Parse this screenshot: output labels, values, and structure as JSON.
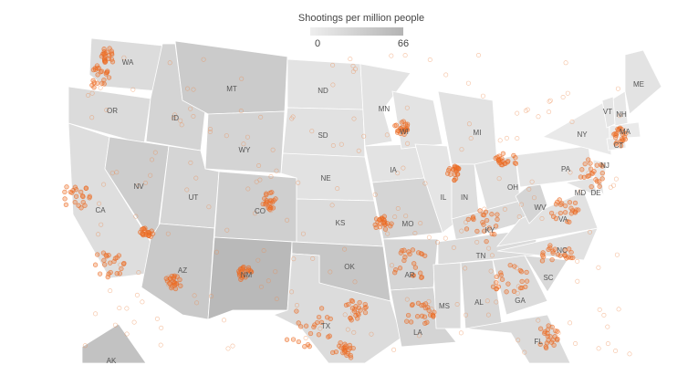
{
  "map": {
    "legend": {
      "title": "Shootings per million people",
      "min": 0,
      "max": 66
    },
    "states": [
      {
        "label": "WA",
        "value": 20
      },
      {
        "label": "OR",
        "value": 22
      },
      {
        "label": "CA",
        "value": 18
      },
      {
        "label": "NV",
        "value": 38
      },
      {
        "label": "ID",
        "value": 30
      },
      {
        "label": "MT",
        "value": 40
      },
      {
        "label": "WY",
        "value": 30
      },
      {
        "label": "UT",
        "value": 28
      },
      {
        "label": "AZ",
        "value": 42
      },
      {
        "label": "CO",
        "value": 35
      },
      {
        "label": "NM",
        "value": 60
      },
      {
        "label": "ND",
        "value": 12
      },
      {
        "label": "SD",
        "value": 15
      },
      {
        "label": "NE",
        "value": 14
      },
      {
        "label": "KS",
        "value": 20
      },
      {
        "label": "OK",
        "value": 45
      },
      {
        "label": "TX",
        "value": 20
      },
      {
        "label": "MN",
        "value": 12
      },
      {
        "label": "IA",
        "value": 12
      },
      {
        "label": "MO",
        "value": 28
      },
      {
        "label": "AR",
        "value": 28
      },
      {
        "label": "LA",
        "value": 30
      },
      {
        "label": "WI",
        "value": 12
      },
      {
        "label": "IL",
        "value": 10
      },
      {
        "label": "MI",
        "value": 14
      },
      {
        "label": "IN",
        "value": 18
      },
      {
        "label": "OH",
        "value": 16
      },
      {
        "label": "KY",
        "value": 22
      },
      {
        "label": "TN",
        "value": 22
      },
      {
        "label": "MS",
        "value": 22
      },
      {
        "label": "AL",
        "value": 26
      },
      {
        "label": "GA",
        "value": 20
      },
      {
        "label": "FL",
        "value": 22
      },
      {
        "label": "SC",
        "value": 24
      },
      {
        "label": "NC",
        "value": 15
      },
      {
        "label": "VA",
        "value": 14
      },
      {
        "label": "WV",
        "value": 28
      },
      {
        "label": "PA",
        "value": 10
      },
      {
        "label": "NY",
        "value": 6
      },
      {
        "label": "MD",
        "value": 12
      },
      {
        "label": "DE",
        "value": 14
      },
      {
        "label": "NJ",
        "value": 6
      },
      {
        "label": "CT",
        "value": 5
      },
      {
        "label": "MA",
        "value": 5
      },
      {
        "label": "NH",
        "value": 8
      },
      {
        "label": "VT",
        "value": 10
      },
      {
        "label": "ME",
        "value": 12
      },
      {
        "label": "AK",
        "value": 50
      }
    ]
  }
}
